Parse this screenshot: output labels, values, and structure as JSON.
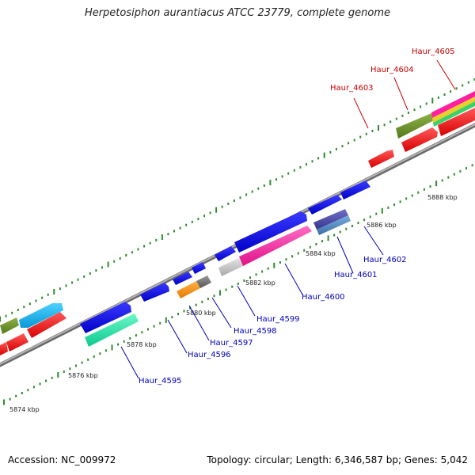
{
  "title": "Herpetosiphon aurantiacus ATCC 23779, complete genome",
  "footer": {
    "accession": "Accession: NC_009972",
    "topology": "Topology: circular; Length: 6,346,587 bp; Genes: 5,042"
  },
  "colors": {
    "backbone": "#8c8c8c",
    "tick": "#2e8b2e",
    "forward_label": "#cc0000",
    "reverse_label": "#0000bb",
    "gene_red": "#ff0000",
    "gene_blue": "#0000ee",
    "gene_pink": "#ff1f9f",
    "gene_olive": "#6b8e23",
    "gene_skyblue": "#1ab2f0",
    "gene_aquamarine": "#11e3a4",
    "gene_orange": "#ff8a00",
    "gene_gray": "#777777",
    "gene_lightgray": "#c8c8c8",
    "gene_slateblue": "#5050a8",
    "gene_steelblue": "#4f86bf"
  },
  "kbp_labels": [
    "5874 kbp",
    "5876 kbp",
    "5878 kbp",
    "5880 kbp",
    "5882 kbp",
    "5884 kbp",
    "5886 kbp",
    "5888 kbp"
  ],
  "forward_genes": [
    "Haur_4603",
    "Haur_4604",
    "Haur_4605"
  ],
  "reverse_genes": [
    "Haur_4595",
    "Haur_4596",
    "Haur_4597",
    "Haur_4598",
    "Haur_4599",
    "Haur_4600",
    "Haur_4601",
    "Haur_4602"
  ]
}
